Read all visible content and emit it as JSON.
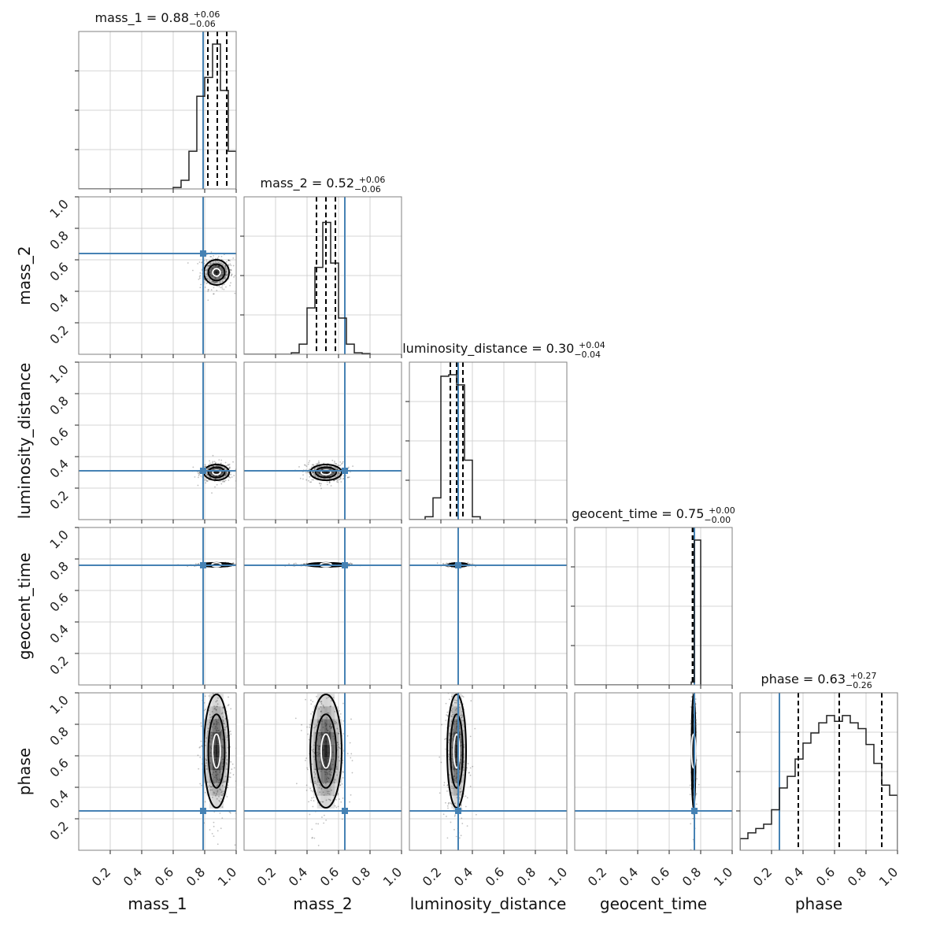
{
  "chart_data": {
    "type": "corner",
    "parameters": [
      "mass_1",
      "mass_2",
      "luminosity_distance",
      "geocent_time",
      "phase"
    ],
    "axis_range": [
      0,
      1
    ],
    "tick_labels": [
      "0.2",
      "0.4",
      "0.6",
      "0.8",
      "1.0"
    ],
    "grid": true,
    "truth_color": "#4682b4",
    "truths": {
      "mass_1": 0.79,
      "mass_2": 0.64,
      "luminosity_distance": 0.31,
      "geocent_time": 0.76,
      "phase": 0.25
    },
    "summaries": [
      {
        "param": "mass_1",
        "label": "mass_1 = 0.88",
        "median": 0.88,
        "plus": "+0.06",
        "minus": "−0.06",
        "quantiles": [
          0.82,
          0.88,
          0.94
        ]
      },
      {
        "param": "mass_2",
        "label": "mass_2 = 0.52",
        "median": 0.52,
        "plus": "+0.06",
        "minus": "−0.06",
        "quantiles": [
          0.46,
          0.52,
          0.58
        ]
      },
      {
        "param": "luminosity_distance",
        "label": "luminosity_distance = 0.30",
        "median": 0.3,
        "plus": "+0.04",
        "minus": "−0.04",
        "quantiles": [
          0.26,
          0.3,
          0.34
        ]
      },
      {
        "param": "geocent_time",
        "label": "geocent_time = 0.75",
        "median": 0.75,
        "plus": "+0.00",
        "minus": "−0.00",
        "quantiles": [
          0.748,
          0.75,
          0.752
        ]
      },
      {
        "param": "phase",
        "label": "phase = 0.63",
        "median": 0.63,
        "plus": "+0.27",
        "minus": "−0.26",
        "quantiles": [
          0.37,
          0.63,
          0.9
        ]
      }
    ],
    "histograms": [
      {
        "param": "mass_1",
        "bin_edges": [
          0.6,
          0.65,
          0.7,
          0.75,
          0.8,
          0.85,
          0.9,
          0.95,
          1.0
        ],
        "values": [
          0.01,
          0.06,
          0.26,
          0.64,
          0.77,
          1.0,
          0.68,
          0.26
        ]
      },
      {
        "param": "mass_2",
        "bin_edges": [
          0.3,
          0.35,
          0.4,
          0.45,
          0.5,
          0.55,
          0.6,
          0.65,
          0.7,
          0.75,
          0.8
        ],
        "values": [
          0.01,
          0.07,
          0.32,
          0.6,
          0.91,
          0.63,
          0.25,
          0.07,
          0.01,
          0.005
        ],
        "extra": [
          [
            0.8,
            0.9,
            0.005
          ]
        ]
      },
      {
        "param": "luminosity_distance",
        "bin_edges": [
          0.1,
          0.15,
          0.2,
          0.25,
          0.3,
          0.35,
          0.4,
          0.45
        ],
        "values": [
          0.02,
          0.15,
          0.99,
          1.0,
          0.93,
          0.41,
          0.02
        ]
      },
      {
        "param": "geocent_time",
        "bin_edges": [
          0.7,
          0.74,
          0.76,
          0.8
        ],
        "values": [
          0.0,
          0.02,
          1.0
        ]
      },
      {
        "param": "phase",
        "bin_edges": [
          0.0,
          0.05,
          0.1,
          0.15,
          0.2,
          0.25,
          0.3,
          0.35,
          0.4,
          0.45,
          0.5,
          0.55,
          0.6,
          0.65,
          0.7,
          0.75,
          0.8,
          0.85,
          0.9,
          0.95,
          1.0
        ],
        "values": [
          0.08,
          0.12,
          0.15,
          0.18,
          0.28,
          0.43,
          0.51,
          0.63,
          0.74,
          0.81,
          0.88,
          0.93,
          0.89,
          0.93,
          0.88,
          0.84,
          0.73,
          0.6,
          0.45,
          0.38
        ]
      }
    ],
    "marginals_2d": [
      {
        "x": "mass_1",
        "y": "mass_2",
        "mean": [
          0.875,
          0.52
        ],
        "sd": [
          0.04,
          0.04
        ]
      },
      {
        "x": "mass_1",
        "y": "luminosity_distance",
        "mean": [
          0.875,
          0.3
        ],
        "sd": [
          0.04,
          0.025
        ]
      },
      {
        "x": "mass_2",
        "y": "luminosity_distance",
        "mean": [
          0.52,
          0.3
        ],
        "sd": [
          0.05,
          0.025
        ]
      },
      {
        "x": "mass_1",
        "y": "geocent_time",
        "mean": [
          0.875,
          0.763
        ],
        "sd": [
          0.05,
          0.004
        ]
      },
      {
        "x": "mass_2",
        "y": "geocent_time",
        "mean": [
          0.52,
          0.763
        ],
        "sd": [
          0.06,
          0.004
        ]
      },
      {
        "x": "luminosity_distance",
        "y": "geocent_time",
        "mean": [
          0.31,
          0.763
        ],
        "sd": [
          0.03,
          0.004
        ]
      },
      {
        "x": "mass_1",
        "y": "phase",
        "mean": [
          0.875,
          0.63
        ],
        "sd": [
          0.04,
          0.18
        ]
      },
      {
        "x": "mass_2",
        "y": "phase",
        "mean": [
          0.52,
          0.63
        ],
        "sd": [
          0.05,
          0.18
        ]
      },
      {
        "x": "luminosity_distance",
        "y": "phase",
        "mean": [
          0.3,
          0.63
        ],
        "sd": [
          0.03,
          0.18
        ]
      },
      {
        "x": "geocent_time",
        "y": "phase",
        "mean": [
          0.755,
          0.63
        ],
        "sd": [
          0.006,
          0.18
        ]
      }
    ]
  }
}
